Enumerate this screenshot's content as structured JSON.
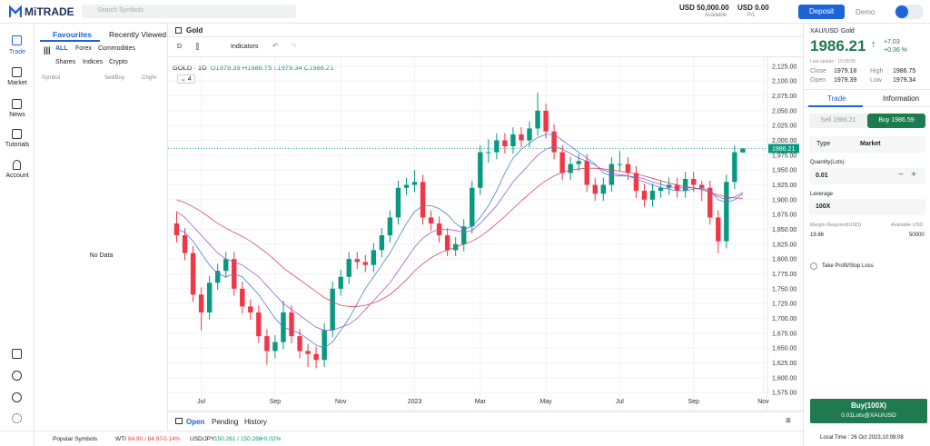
{
  "top_bar": {
    "logo": "MiTRADE",
    "search_placeholder": "Search Symbols",
    "balance": "USD 50,000.00",
    "balance_label": "Available",
    "pl": "USD 0.00",
    "pl_label": "P/L",
    "deposit": "Deposit",
    "account_mode": "Demo"
  },
  "nav": [
    "Trade",
    "Market",
    "News",
    "Tutorials",
    "Account"
  ],
  "watchlist": {
    "tabs": [
      "Favourites",
      "Recently Viewed"
    ],
    "filters": [
      "ALL",
      "Forex",
      "Commodities",
      "Shares",
      "Indices",
      "Crypto"
    ],
    "columns": [
      "Symbol",
      "Sell/Buy",
      "Chg%"
    ],
    "empty": "No Data"
  },
  "chart_header": {
    "symbol": "Gold",
    "interval": "D",
    "indicators": "Indicators",
    "legend_symbol": "GOLD · 1D",
    "legend_ohlc": [
      "O1979.39",
      "H1986.75",
      "L1979.34",
      "C1986.21"
    ],
    "indicator_count": "4"
  },
  "chart_data": {
    "type": "candlestick",
    "up_color": "#089981",
    "down_color": "#f23645",
    "xlim": [
      -0.5,
      72
    ],
    "xticks": [
      {
        "value": 3,
        "label": "Jul"
      },
      {
        "value": 12,
        "label": "Sep"
      },
      {
        "value": 20,
        "label": "Nov"
      },
      {
        "value": 29,
        "label": "2023"
      },
      {
        "value": 37,
        "label": "Mar"
      },
      {
        "value": 45,
        "label": "May"
      },
      {
        "value": 54,
        "label": "Jul"
      },
      {
        "value": 63,
        "label": "Sep"
      },
      {
        "value": 71.5,
        "label": "Nov"
      }
    ],
    "ylim": [
      1563,
      2137
    ],
    "yticks": [
      {
        "value": 2125,
        "label": "2,125.00"
      },
      {
        "value": 2100,
        "label": "2,100.00"
      },
      {
        "value": 2075,
        "label": "2,075.00"
      },
      {
        "value": 2050,
        "label": "2,050.00"
      },
      {
        "value": 2025,
        "label": "2,025.00"
      },
      {
        "value": 2000,
        "label": "2,000.00"
      },
      {
        "value": 1975,
        "label": "1,975.00"
      },
      {
        "value": 1950,
        "label": "1,950.00"
      },
      {
        "value": 1925,
        "label": "1,925.00"
      },
      {
        "value": 1900,
        "label": "1,900.00"
      },
      {
        "value": 1875,
        "label": "1,875.00"
      },
      {
        "value": 1850,
        "label": "1,850.00"
      },
      {
        "value": 1825,
        "label": "1,825.00"
      },
      {
        "value": 1800,
        "label": "1,800.00"
      },
      {
        "value": 1775,
        "label": "1,775.00"
      },
      {
        "value": 1750,
        "label": "1,750.00"
      },
      {
        "value": 1725,
        "label": "1,725.00"
      },
      {
        "value": 1700,
        "label": "1,700.00"
      },
      {
        "value": 1675,
        "label": "1,675.00"
      },
      {
        "value": 1650,
        "label": "1,650.00"
      },
      {
        "value": 1625,
        "label": "1,625.00"
      },
      {
        "value": 1600,
        "label": "1,600.00"
      },
      {
        "value": 1575,
        "label": "1,575.00"
      }
    ],
    "grid": true,
    "last_price": {
      "value": 1986.21,
      "label": "1986.21",
      "color": "#089981"
    },
    "open": [
      1860,
      1840,
      1810,
      1740,
      1710,
      1760,
      1780,
      1800,
      1750,
      1720,
      1710,
      1670,
      1645,
      1660,
      1710,
      1670,
      1645,
      1640,
      1630,
      1680,
      1750,
      1770,
      1800,
      1795,
      1790,
      1815,
      1840,
      1870,
      1920,
      1925,
      1930,
      1870,
      1860,
      1840,
      1815,
      1825,
      1855,
      1920,
      1980,
      1980,
      2000,
      1990,
      2010,
      2000,
      2020,
      2050,
      2015,
      1980,
      1945,
      1960,
      1965,
      1925,
      1910,
      1925,
      1960,
      1960,
      1945,
      1915,
      1900,
      1915,
      1920,
      1925,
      1915,
      1935,
      1925,
      1920,
      1870,
      1830,
      1930,
      1979.39
    ],
    "high": [
      1880,
      1852,
      1822,
      1752,
      1772,
      1792,
      1812,
      1812,
      1762,
      1732,
      1722,
      1682,
      1672,
      1730,
      1722,
      1682,
      1657,
      1652,
      1692,
      1762,
      1782,
      1812,
      1812,
      1807,
      1827,
      1852,
      1882,
      1932,
      1937,
      1950,
      1942,
      1882,
      1872,
      1852,
      1837,
      1867,
      1932,
      1992,
      2002,
      2012,
      2012,
      2022,
      2022,
      2032,
      2080,
      2062,
      2027,
      1992,
      1972,
      1977,
      1977,
      1937,
      1937,
      1972,
      1982,
      1972,
      1957,
      1927,
      1927,
      1932,
      1937,
      1937,
      1947,
      1947,
      1932,
      1932,
      1882,
      1942,
      1992,
      1986.75
    ],
    "low": [
      1828,
      1798,
      1728,
      1680,
      1698,
      1748,
      1768,
      1738,
      1708,
      1698,
      1658,
      1622,
      1633,
      1648,
      1658,
      1633,
      1618,
      1616,
      1618,
      1668,
      1738,
      1758,
      1783,
      1778,
      1778,
      1803,
      1828,
      1858,
      1908,
      1913,
      1858,
      1848,
      1828,
      1805,
      1805,
      1813,
      1843,
      1908,
      1962,
      1968,
      1978,
      1978,
      1988,
      1988,
      2008,
      2003,
      1968,
      1933,
      1933,
      1948,
      1913,
      1898,
      1898,
      1913,
      1948,
      1933,
      1903,
      1888,
      1888,
      1903,
      1908,
      1903,
      1903,
      1913,
      1898,
      1858,
      1810,
      1818,
      1918,
      1979.34
    ],
    "close": [
      1840,
      1810,
      1740,
      1710,
      1760,
      1780,
      1800,
      1750,
      1720,
      1710,
      1670,
      1645,
      1660,
      1710,
      1670,
      1645,
      1640,
      1630,
      1680,
      1750,
      1770,
      1800,
      1795,
      1790,
      1815,
      1840,
      1870,
      1920,
      1925,
      1930,
      1870,
      1860,
      1840,
      1815,
      1825,
      1855,
      1920,
      1980,
      1980,
      2000,
      1990,
      2010,
      2000,
      2020,
      2050,
      2015,
      1980,
      1945,
      1960,
      1965,
      1925,
      1910,
      1925,
      1960,
      1960,
      1945,
      1915,
      1900,
      1915,
      1920,
      1925,
      1915,
      1935,
      1925,
      1920,
      1870,
      1830,
      1930,
      1980,
      1986.21
    ],
    "moving_averages": [
      {
        "color": "#4a7fd6",
        "values": [
          1850,
          1845,
          1830,
          1810,
          1790,
          1775,
          1770,
          1775,
          1770,
          1755,
          1740,
          1720,
          1700,
          1685,
          1680,
          1675,
          1665,
          1655,
          1650,
          1660,
          1680,
          1700,
          1725,
          1750,
          1770,
          1790,
          1810,
          1835,
          1860,
          1880,
          1890,
          1890,
          1885,
          1875,
          1860,
          1850,
          1855,
          1870,
          1890,
          1915,
          1945,
          1970,
          1985,
          1995,
          2005,
          2010,
          2010,
          2000,
          1990,
          1980,
          1970,
          1960,
          1945,
          1940,
          1940,
          1940,
          1935,
          1930,
          1925,
          1920,
          1918,
          1915,
          1915,
          1918,
          1920,
          1915,
          1900,
          1895,
          1900,
          1910
        ]
      },
      {
        "color": "#9c5bd0",
        "values": [
          1880,
          1870,
          1855,
          1840,
          1825,
          1810,
          1800,
          1795,
          1790,
          1780,
          1770,
          1755,
          1740,
          1725,
          1715,
          1705,
          1695,
          1685,
          1680,
          1680,
          1685,
          1690,
          1700,
          1715,
          1730,
          1745,
          1760,
          1780,
          1800,
          1820,
          1835,
          1845,
          1850,
          1850,
          1848,
          1845,
          1848,
          1860,
          1875,
          1890,
          1910,
          1930,
          1945,
          1960,
          1975,
          1985,
          1990,
          1985,
          1978,
          1970,
          1965,
          1958,
          1950,
          1945,
          1942,
          1940,
          1938,
          1935,
          1930,
          1926,
          1922,
          1920,
          1920,
          1920,
          1918,
          1912,
          1905,
          1900,
          1905,
          1912
        ]
      },
      {
        "color": "#d9475f",
        "values": [
          1900,
          1895,
          1888,
          1880,
          1870,
          1860,
          1852,
          1845,
          1838,
          1830,
          1820,
          1810,
          1798,
          1785,
          1775,
          1765,
          1755,
          1745,
          1735,
          1728,
          1722,
          1720,
          1720,
          1722,
          1726,
          1732,
          1740,
          1752,
          1765,
          1780,
          1792,
          1802,
          1810,
          1815,
          1820,
          1825,
          1830,
          1838,
          1848,
          1860,
          1872,
          1885,
          1898,
          1910,
          1922,
          1932,
          1940,
          1946,
          1950,
          1952,
          1953,
          1953,
          1952,
          1950,
          1948,
          1946,
          1943,
          1940,
          1936,
          1932,
          1928,
          1925,
          1922,
          1920,
          1917,
          1913,
          1908,
          1905,
          1903,
          1902
        ]
      }
    ]
  },
  "orders": {
    "tabs": [
      "Open",
      "Pending",
      "History"
    ]
  },
  "footer": {
    "popular": "Popular Symbols",
    "tickers": [
      {
        "name": "WTI",
        "quote": "84.90 / 84.97",
        "change": "-0.14%"
      },
      {
        "name": "USD/JPY",
        "quote": "150.261 / 150.288",
        "change": "+0.02%"
      }
    ]
  },
  "trade_panel": {
    "symbol": "XAU/USD",
    "name": "Gold",
    "price": "1986.21",
    "change": "+7.03",
    "change_pct": "+0.36 %",
    "last_update": "Last update : 10:08:08",
    "stats": [
      [
        "Close",
        "1979.18"
      ],
      [
        "High",
        "1986.75"
      ],
      [
        "Open",
        "1979.39"
      ],
      [
        "Low",
        "1979.34"
      ]
    ],
    "tabs": [
      "Trade",
      "Information"
    ],
    "sell": "Sell 1986.21",
    "buy": "Buy 1986.59",
    "type_label": "Type",
    "type_value": "Market",
    "quantity_label": "Quantity(Lots)",
    "quantity": "0.01",
    "leverage_label": "Leverage",
    "leverage": "100X",
    "margin_label": "Margin Required(USD)",
    "margin": "19.86",
    "available_label": "Available USD",
    "available": "50000",
    "tpsl": "Take Profit/Stop Loss",
    "buy_button": "Buy(100X)",
    "buy_button_sub": "0.01Lots@XAU/USD",
    "local_time": "Local Time : 26 Oct 2023,10:08:08"
  }
}
